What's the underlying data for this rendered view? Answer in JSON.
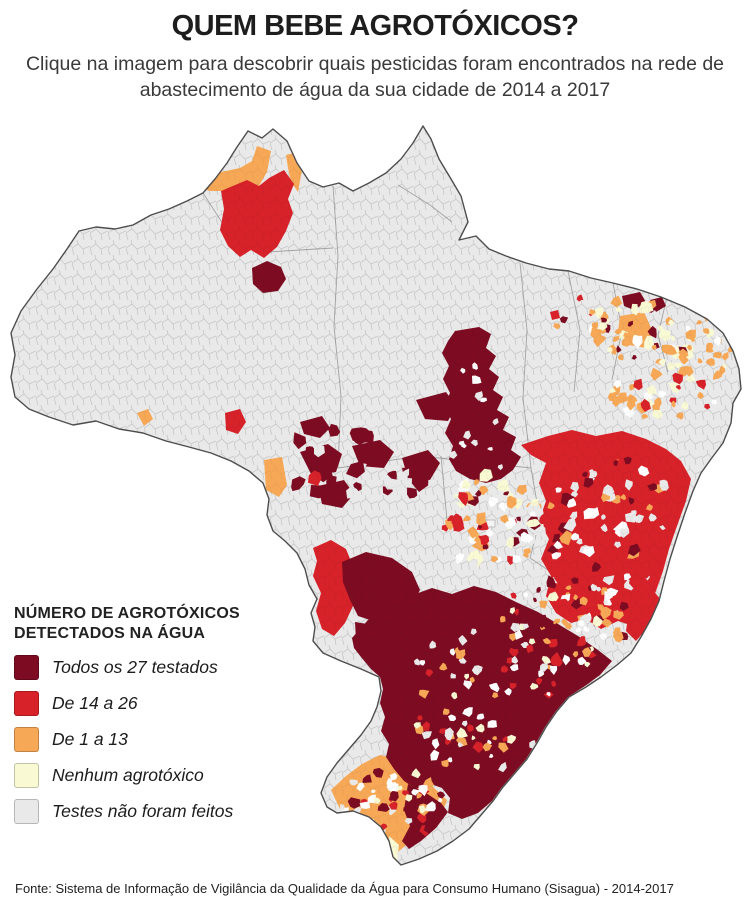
{
  "header": {
    "title": "QUEM BEBE AGROTÓXICOS?",
    "subtitle": "Clique na imagem para descobrir quais pesticidas foram encontrados na rede de abastecimento de água da sua cidade de 2014 a 2017"
  },
  "legend": {
    "title_line1": "NÚMERO DE AGROTÓXICOS",
    "title_line2": "DETECTADOS NA ÁGUA",
    "items": [
      {
        "label": "Todos os 27 testados",
        "color": "#7d0c22"
      },
      {
        "label": "De 14 a 26",
        "color": "#d7222a"
      },
      {
        "label": "De 1 a 13",
        "color": "#f7a857"
      },
      {
        "label": "Nenhum agrotóxico",
        "color": "#f9f9d3"
      },
      {
        "label": "Testes não foram feitos",
        "color": "#e9e9e9"
      }
    ]
  },
  "map": {
    "description": "Mapa coroplético do Brasil por município, 2014 a 2017",
    "region_categories": [
      {
        "area": "Amazônia (AM, PA, AC, AP, MA oeste)",
        "category": "Testes não foram feitos"
      },
      {
        "area": "Roraima centro",
        "category": "De 14 a 26"
      },
      {
        "area": "Roraima bordas / Rondônia sul",
        "category": "De 1 a 13"
      },
      {
        "area": "Amazonas centro (mancha isolada)",
        "category": "Todos os 27 testados"
      },
      {
        "area": "Tocantins / leste do Mato Grosso",
        "category": "Todos os 27 testados"
      },
      {
        "area": "Bahia",
        "category": "De 14 a 26"
      },
      {
        "area": "Ceará / Pernambuco / Paraíba",
        "category": "De 1 a 13 e Nenhum agrotóxico"
      },
      {
        "area": "Goiás / Minas Gerais",
        "category": "mistura: De 1 a 13, Nenhum, De 14 a 26"
      },
      {
        "area": "São Paulo / Paraná / Santa Catarina / Rio de Janeiro / Mato Grosso do Sul",
        "category": "Todos os 27 testados"
      },
      {
        "area": "Espírito Santo",
        "category": "De 14 a 26"
      },
      {
        "area": "Rio Grande do Sul",
        "category": "mistura: De 1 a 13 dominante"
      }
    ]
  },
  "footer": {
    "source": "Fonte: Sistema de Informação de Vigilância da Qualidade da Água para Consumo Humano (Sisagua) - 2014-2017"
  }
}
